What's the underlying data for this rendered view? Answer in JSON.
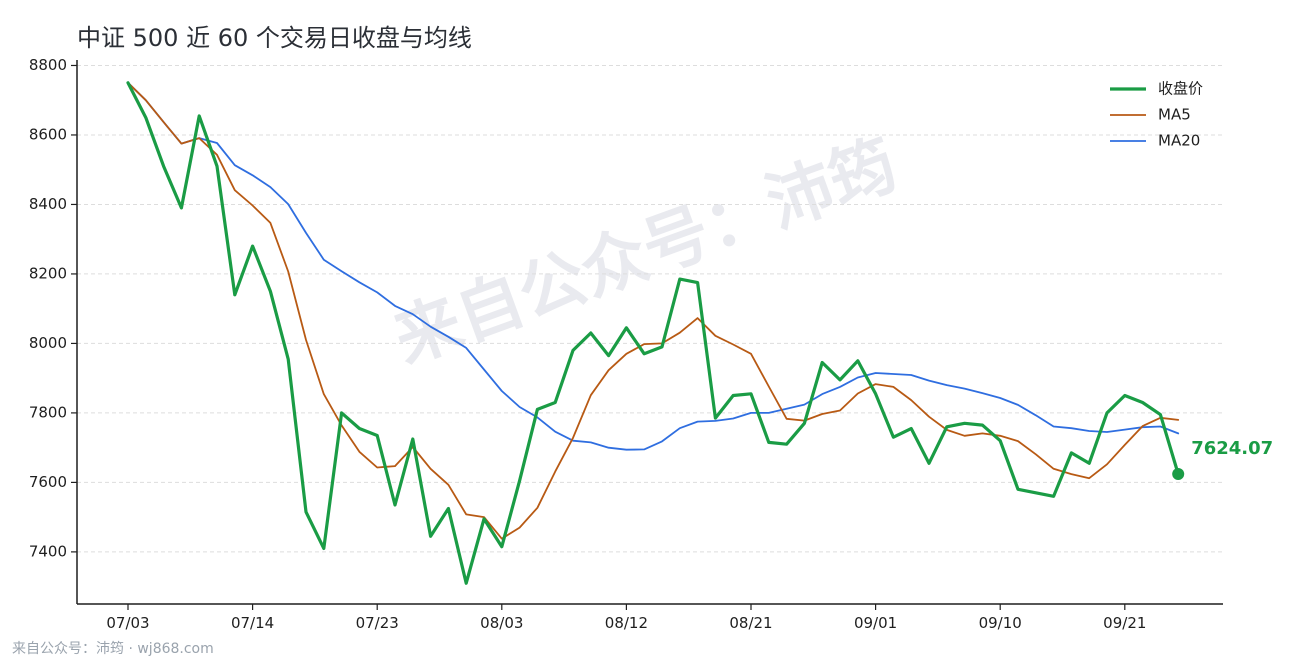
{
  "title": "中证 500 近 60 个交易日收盘与均线",
  "footer": "来自公众号：沛筠 · wj868.com",
  "watermark": "来自公众号：沛筠",
  "colors": {
    "close": "#1a9c45",
    "ma5": "#b85a14",
    "ma20": "#2f6ee0",
    "axis": "#1f1f1f",
    "grid": "#dddddd"
  },
  "chart_data": {
    "type": "line",
    "title": "中证 500 近 60 个交易日收盘与均线",
    "x": [
      "07/03",
      "07/04",
      "07/07",
      "07/08",
      "07/09",
      "07/10",
      "07/11",
      "07/14",
      "07/15",
      "07/16",
      "07/17",
      "07/18",
      "07/21",
      "07/22",
      "07/23",
      "07/24",
      "07/25",
      "07/28",
      "07/29",
      "07/30",
      "07/31",
      "08/01",
      "08/04",
      "08/05",
      "08/06",
      "08/07",
      "08/08",
      "08/11",
      "08/12",
      "08/13",
      "08/14",
      "08/15",
      "08/18",
      "08/19",
      "08/20",
      "08/21",
      "08/22",
      "08/25",
      "08/26",
      "08/27",
      "08/28",
      "08/29",
      "09/01",
      "09/02",
      "09/03",
      "09/04",
      "09/05",
      "09/08",
      "09/09",
      "09/10",
      "09/11",
      "09/12",
      "09/15",
      "09/16",
      "09/17",
      "09/18",
      "09/19",
      "09/22",
      "09/23",
      "09/24"
    ],
    "xticks": [
      "07/03",
      "07/14",
      "07/23",
      "08/03",
      "08/12",
      "08/21",
      "09/01",
      "09/10",
      "09/21"
    ],
    "xtick_index": [
      0,
      7,
      14,
      21,
      28,
      35,
      42,
      49,
      56
    ],
    "yticks": [
      7400,
      7600,
      7800,
      8000,
      8200,
      8400,
      8600,
      8800
    ],
    "ylim": [
      7250,
      8810
    ],
    "grid": true,
    "legend_position": "top-right",
    "series": [
      {
        "name": "收盘价",
        "values": [
          8750,
          8650,
          8510,
          8390,
          8655,
          8510,
          8140,
          8280,
          8150,
          7955,
          7515,
          7410,
          7800,
          7755,
          7735,
          7535,
          7725,
          7445,
          7525,
          7310,
          7495,
          7415,
          7605,
          7810,
          7830,
          7980,
          8030,
          7965,
          8045,
          7970,
          7990,
          8185,
          8175,
          7785,
          7850,
          7855,
          7715,
          7710,
          7770,
          7945,
          7895,
          7950,
          7855,
          7730,
          7755,
          7655,
          7760,
          7770,
          7765,
          7720,
          7580,
          7570,
          7560,
          7685,
          7655,
          7800,
          7850,
          7830,
          7795,
          7624.07
        ]
      },
      {
        "name": "MA5",
        "values": [
          8750,
          8700,
          8637,
          8575,
          8591,
          8543,
          8441,
          8397,
          8347,
          8207,
          8010,
          7854,
          7764,
          7688,
          7643,
          7647,
          7702,
          7639,
          7593,
          7508,
          7500,
          7438,
          7470,
          7527,
          7631,
          7728,
          7851,
          7923,
          7970,
          7998,
          8000,
          8031,
          8073,
          8022,
          7997,
          7970,
          7876,
          7783,
          7778,
          7797,
          7807,
          7856,
          7883,
          7875,
          7837,
          7789,
          7751,
          7734,
          7741,
          7734,
          7719,
          7681,
          7639,
          7624,
          7612,
          7652,
          7708,
          7762,
          7786,
          7780
        ]
      },
      {
        "name": "MA20",
        "values": [
          8750,
          8700,
          8637,
          8575,
          8591,
          8577,
          8513,
          8484,
          8450,
          8401,
          8318,
          8241,
          8208,
          8176,
          8147,
          8108,
          8084,
          8048,
          8019,
          7987,
          7925,
          7863,
          7817,
          7787,
          7746,
          7720,
          7715,
          7700,
          7694,
          7695,
          7718,
          7756,
          7775,
          7777,
          7784,
          7800,
          7800,
          7812,
          7824,
          7854,
          7875,
          7902,
          7915,
          7912,
          7909,
          7893,
          7880,
          7870,
          7857,
          7843,
          7823,
          7793,
          7761,
          7756,
          7748,
          7745,
          7752,
          7759,
          7761,
          7741
        ]
      }
    ],
    "end_label": "7624.07"
  }
}
